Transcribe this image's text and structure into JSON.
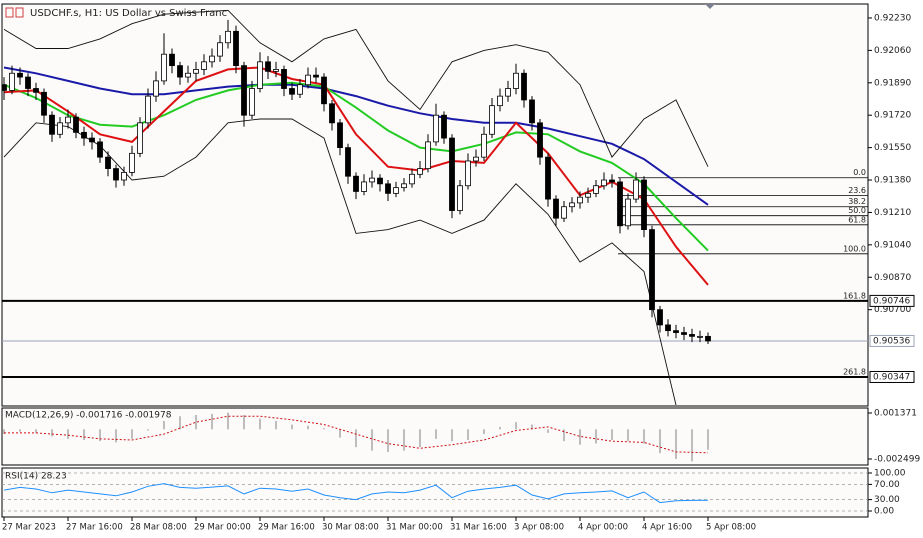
{
  "chart_data": [
    {
      "type": "candlestick",
      "title": "USDCHF.s, H1:  US Dollar vs Swiss Franc",
      "ylim": [
        0.902,
        0.92298
      ],
      "yticks": [
        {
          "value": 0.9223,
          "label": "0.92230"
        },
        {
          "value": 0.9206,
          "label": "0.92060"
        },
        {
          "value": 0.9189,
          "label": "0.91890"
        },
        {
          "value": 0.9172,
          "label": "0.91720"
        },
        {
          "value": 0.9155,
          "label": "0.91550"
        },
        {
          "value": 0.9138,
          "label": "0.91380"
        },
        {
          "value": 0.9121,
          "label": "0.91210"
        },
        {
          "value": 0.9104,
          "label": "0.91040"
        },
        {
          "value": 0.9087,
          "label": "0.90870"
        },
        {
          "value": 0.907,
          "label": "0.90700"
        }
      ],
      "candles": [
        [
          0.9188,
          0.9192,
          0.918,
          0.9185
        ],
        [
          0.9185,
          0.9198,
          0.9183,
          0.9194
        ],
        [
          0.9194,
          0.9197,
          0.9188,
          0.9192
        ],
        [
          0.9192,
          0.9194,
          0.9182,
          0.9186
        ],
        [
          0.9186,
          0.9189,
          0.918,
          0.9184
        ],
        [
          0.9184,
          0.9186,
          0.9168,
          0.9172
        ],
        [
          0.9172,
          0.9174,
          0.9158,
          0.9162
        ],
        [
          0.9162,
          0.9171,
          0.916,
          0.9168
        ],
        [
          0.9168,
          0.9175,
          0.9165,
          0.9171
        ],
        [
          0.9171,
          0.9173,
          0.916,
          0.9163
        ],
        [
          0.9163,
          0.9166,
          0.9156,
          0.916
        ],
        [
          0.916,
          0.9163,
          0.9154,
          0.9158
        ],
        [
          0.9158,
          0.916,
          0.9147,
          0.915
        ],
        [
          0.915,
          0.9153,
          0.914,
          0.9144
        ],
        [
          0.9144,
          0.9146,
          0.9134,
          0.9138
        ],
        [
          0.9138,
          0.9145,
          0.9135,
          0.9142
        ],
        [
          0.9142,
          0.9156,
          0.914,
          0.9152
        ],
        [
          0.9152,
          0.9171,
          0.915,
          0.9168
        ],
        [
          0.9168,
          0.9186,
          0.9165,
          0.9182
        ],
        [
          0.9182,
          0.9195,
          0.9179,
          0.919
        ],
        [
          0.919,
          0.9215,
          0.9188,
          0.9204
        ],
        [
          0.9204,
          0.9207,
          0.9194,
          0.9198
        ],
        [
          0.9198,
          0.92,
          0.9188,
          0.9192
        ],
        [
          0.9192,
          0.9198,
          0.9189,
          0.9194
        ],
        [
          0.9194,
          0.92,
          0.919,
          0.9196
        ],
        [
          0.9196,
          0.9204,
          0.9193,
          0.92
        ],
        [
          0.92,
          0.9207,
          0.9197,
          0.9203
        ],
        [
          0.9203,
          0.9214,
          0.92,
          0.921
        ],
        [
          0.921,
          0.9222,
          0.9207,
          0.9216
        ],
        [
          0.9216,
          0.9219,
          0.9194,
          0.9198
        ],
        [
          0.9198,
          0.92,
          0.9166,
          0.9172
        ],
        [
          0.9172,
          0.919,
          0.917,
          0.9186
        ],
        [
          0.9186,
          0.9205,
          0.9184,
          0.92
        ],
        [
          0.92,
          0.9203,
          0.9191,
          0.9195
        ],
        [
          0.9195,
          0.92,
          0.9192,
          0.9196
        ],
        [
          0.9196,
          0.9198,
          0.9182,
          0.9186
        ],
        [
          0.9186,
          0.9189,
          0.918,
          0.9183
        ],
        [
          0.9183,
          0.9191,
          0.9181,
          0.9188
        ],
        [
          0.9188,
          0.9197,
          0.9186,
          0.9193
        ],
        [
          0.9193,
          0.9197,
          0.9189,
          0.9192
        ],
        [
          0.9192,
          0.9194,
          0.9174,
          0.9178
        ],
        [
          0.9178,
          0.918,
          0.9164,
          0.9168
        ],
        [
          0.9168,
          0.917,
          0.9151,
          0.9155
        ],
        [
          0.9155,
          0.9157,
          0.9136,
          0.914
        ],
        [
          0.914,
          0.9142,
          0.9128,
          0.9132
        ],
        [
          0.9132,
          0.9141,
          0.913,
          0.9137
        ],
        [
          0.9137,
          0.9143,
          0.9134,
          0.9139
        ],
        [
          0.9139,
          0.9141,
          0.9132,
          0.9136
        ],
        [
          0.9136,
          0.9138,
          0.9127,
          0.9131
        ],
        [
          0.9131,
          0.9137,
          0.9129,
          0.9134
        ],
        [
          0.9134,
          0.9139,
          0.9132,
          0.9136
        ],
        [
          0.9136,
          0.9144,
          0.9134,
          0.9141
        ],
        [
          0.9141,
          0.9148,
          0.9139,
          0.9144
        ],
        [
          0.9144,
          0.9162,
          0.9142,
          0.9158
        ],
        [
          0.9158,
          0.9178,
          0.9156,
          0.9172
        ],
        [
          0.9172,
          0.9174,
          0.9157,
          0.916
        ],
        [
          0.916,
          0.9162,
          0.9118,
          0.9122
        ],
        [
          0.9122,
          0.9138,
          0.912,
          0.9135
        ],
        [
          0.9135,
          0.9152,
          0.9133,
          0.9148
        ],
        [
          0.9148,
          0.9154,
          0.9145,
          0.915
        ],
        [
          0.915,
          0.9166,
          0.9148,
          0.9162
        ],
        [
          0.9162,
          0.9181,
          0.916,
          0.9177
        ],
        [
          0.9177,
          0.9186,
          0.9174,
          0.9182
        ],
        [
          0.9182,
          0.919,
          0.9179,
          0.9186
        ],
        [
          0.9186,
          0.9199,
          0.9183,
          0.9194
        ],
        [
          0.9194,
          0.9196,
          0.9176,
          0.918
        ],
        [
          0.918,
          0.9182,
          0.9164,
          0.9168
        ],
        [
          0.9168,
          0.917,
          0.9146,
          0.915
        ],
        [
          0.915,
          0.9152,
          0.9124,
          0.9128
        ],
        [
          0.9128,
          0.913,
          0.9114,
          0.9118
        ],
        [
          0.9118,
          0.9127,
          0.9116,
          0.9124
        ],
        [
          0.9124,
          0.9129,
          0.9121,
          0.9126
        ],
        [
          0.9126,
          0.9132,
          0.9123,
          0.9129
        ],
        [
          0.9129,
          0.9134,
          0.9126,
          0.9131
        ],
        [
          0.9131,
          0.9138,
          0.9129,
          0.9135
        ],
        [
          0.9135,
          0.9142,
          0.9133,
          0.9138
        ],
        [
          0.9138,
          0.9141,
          0.9134,
          0.9137
        ],
        [
          0.9137,
          0.9139,
          0.911,
          0.9114
        ],
        [
          0.9114,
          0.9131,
          0.9112,
          0.9128
        ],
        [
          0.9128,
          0.9142,
          0.9126,
          0.9138
        ],
        [
          0.9138,
          0.914,
          0.9108,
          0.9112
        ],
        [
          0.9112,
          0.9114,
          0.9066,
          0.907
        ],
        [
          0.907,
          0.9072,
          0.9058,
          0.9062
        ],
        [
          0.9062,
          0.9065,
          0.9056,
          0.9059
        ],
        [
          0.9059,
          0.9062,
          0.9055,
          0.9058
        ],
        [
          0.9058,
          0.9061,
          0.9054,
          0.9057
        ],
        [
          0.9057,
          0.906,
          0.9053,
          0.9056
        ],
        [
          0.9056,
          0.9059,
          0.9053,
          0.9056
        ],
        [
          0.9056,
          0.9058,
          0.9052,
          0.90536
        ]
      ],
      "lines": [
        {
          "color": "#1a1aa8",
          "values": [
            0.9197,
            0.9194,
            0.919,
            0.9186,
            0.9183,
            0.9183,
            0.9185,
            0.9187,
            0.9188,
            0.9188,
            0.9186,
            0.9182,
            0.9177,
            0.9173,
            0.917,
            0.9168,
            0.9168,
            0.9165,
            0.9161,
            0.9157,
            0.9149,
            0.9137,
            0.9125
          ]
        },
        {
          "color": "#22cc22",
          "values": [
            0.9188,
            0.9181,
            0.9172,
            0.9167,
            0.9166,
            0.9172,
            0.918,
            0.9185,
            0.9188,
            0.9189,
            0.9187,
            0.9176,
            0.9164,
            0.9155,
            0.9153,
            0.9157,
            0.9163,
            0.9162,
            0.9153,
            0.9147,
            0.9136,
            0.9118,
            0.9101
          ]
        },
        {
          "color": "#dd1111",
          "values": [
            0.9184,
            0.9185,
            0.9174,
            0.9162,
            0.9158,
            0.9174,
            0.919,
            0.9196,
            0.9197,
            0.9191,
            0.9188,
            0.9162,
            0.9145,
            0.9143,
            0.9148,
            0.9147,
            0.9168,
            0.9152,
            0.913,
            0.9137,
            0.9128,
            0.9103,
            0.9083
          ]
        },
        {
          "color": "#111111",
          "values": [
            0.9217,
            0.9207,
            0.9207,
            0.9212,
            0.922,
            0.9225,
            0.9226,
            0.9227,
            0.921,
            0.92,
            0.9212,
            0.9217,
            0.919,
            0.9175,
            0.92,
            0.9206,
            0.9209,
            0.9205,
            0.9188,
            0.915,
            0.917,
            0.918,
            0.9145
          ]
        },
        {
          "color": "#111111",
          "values": [
            0.915,
            0.9168,
            0.9166,
            0.9156,
            0.9138,
            0.914,
            0.915,
            0.9168,
            0.917,
            0.917,
            0.916,
            0.911,
            0.9112,
            0.9117,
            0.911,
            0.9117,
            0.9136,
            0.912,
            0.9095,
            0.9105,
            0.909,
            0.902,
            null
          ]
        }
      ],
      "levels": [
        0.90746,
        0.90536,
        0.90347
      ],
      "level_colors": [
        "#000000",
        "#9aa3b5",
        "#000000"
      ],
      "fib_levels": [
        {
          "value": 0.91392,
          "label": "0.0"
        },
        {
          "value": 0.91298,
          "label": "23.6"
        },
        {
          "value": 0.9124,
          "label": "38.2"
        },
        {
          "value": 0.91193,
          "label": "50.0"
        },
        {
          "value": 0.91145,
          "label": "61.8"
        },
        {
          "value": 0.90993,
          "label": "100.0"
        },
        {
          "value": 0.90746,
          "label": "161.8"
        },
        {
          "value": 0.90347,
          "label": "261.8"
        }
      ]
    },
    {
      "type": "macd",
      "title": "MACD(12,26,9) -0.001716 -0.001978",
      "ylim": [
        -0.002499,
        0.001371
      ],
      "yticks": [
        0.001371,
        -0.002499
      ],
      "values": [
        -0.0004,
        -0.0002,
        -0.0003,
        -0.0006,
        -0.0008,
        -0.0009,
        -0.001,
        -0.0011,
        -0.0008,
        -0.0001,
        0.0007,
        0.0011,
        0.0012,
        0.0013,
        0.0014,
        0.0012,
        0.0009,
        0.0007,
        0.0004,
        0.0003,
        0.0001,
        -0.0007,
        -0.0015,
        -0.0018,
        -0.0019,
        -0.0018,
        -0.0015,
        -0.0008,
        -0.001,
        -0.0009,
        -0.0004,
        0.0002,
        0.0006,
        0.0004,
        -0.0003,
        -0.001,
        -0.0013,
        -0.0012,
        -0.0009,
        -0.001,
        -0.0012,
        -0.002,
        -0.0025,
        -0.0027,
        -0.001716
      ],
      "color": "#a8a8a8",
      "signal": [
        -0.0003,
        -0.0003,
        -0.0005,
        -0.0008,
        -0.0009,
        -0.0004,
        0.0006,
        0.0011,
        0.0011,
        0.0008,
        0.0004,
        -0.0004,
        -0.0012,
        -0.0016,
        -0.0013,
        -0.0009,
        -0.0001,
        0.0002,
        -0.0006,
        -0.001,
        -0.0011,
        -0.0019,
        -0.001978
      ],
      "signal_color": "#cc1111"
    },
    {
      "type": "rsi",
      "title": "RSI(14) 28.23",
      "ylim": [
        0,
        100
      ],
      "yticks": [
        {
          "value": 100,
          "label": "100.00"
        },
        {
          "value": 70,
          "label": "70.00"
        },
        {
          "value": 30,
          "label": "30.00"
        },
        {
          "value": 0,
          "label": "0.00"
        }
      ],
      "values": [
        55,
        62,
        58,
        48,
        55,
        50,
        45,
        40,
        50,
        65,
        72,
        62,
        60,
        63,
        66,
        45,
        60,
        58,
        52,
        58,
        42,
        35,
        30,
        45,
        50,
        48,
        55,
        68,
        35,
        52,
        58,
        62,
        68,
        42,
        32,
        45,
        48,
        50,
        53,
        35,
        50,
        22,
        27,
        28,
        28.23
      ],
      "color": "#1e90ff",
      "x_tick_labels": [
        "27 Mar 2023",
        "27 Mar 16:00",
        "28 Mar 08:00",
        "29 Mar 00:00",
        "29 Mar 16:00",
        "30 Mar 08:00",
        "31 Mar 00:00",
        "31 Mar 16:00",
        "3 Apr 08:00",
        "4 Apr 00:00",
        "4 Apr 16:00",
        "5 Apr 08:00"
      ]
    }
  ]
}
